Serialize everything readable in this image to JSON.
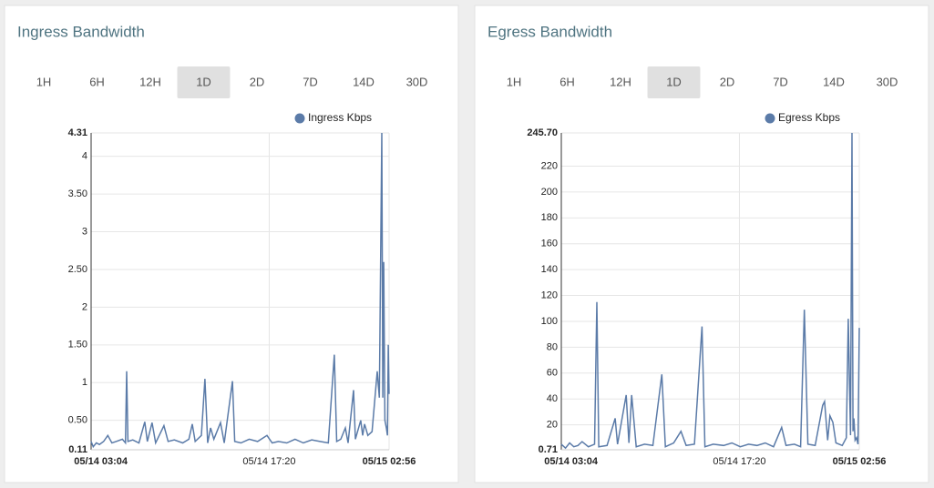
{
  "time_ranges": [
    "1H",
    "6H",
    "12H",
    "1D",
    "2D",
    "7D",
    "14D",
    "30D"
  ],
  "selected_range": "1D",
  "chart_data": [
    {
      "type": "line",
      "title": "Ingress Bandwidth",
      "legend": "top-right",
      "grid": true,
      "series": [
        {
          "name": "Ingress Kbps",
          "color": "#5b7ba8",
          "x": [
            0,
            10,
            25,
            40,
            60,
            80,
            100,
            120,
            150,
            165,
            171,
            177,
            200,
            230,
            258,
            270,
            293,
            310,
            350,
            370,
            400,
            440,
            470,
            486,
            500,
            530,
            547,
            560,
            574,
            590,
            622,
            640,
            679,
            690,
            720,
            760,
            800,
            845,
            870,
            900,
            940,
            980,
            1020,
            1060,
            1100,
            1140,
            1169,
            1180,
            1200,
            1222,
            1235,
            1261,
            1270,
            1296,
            1305,
            1314,
            1330,
            1350,
            1375,
            1385,
            1397,
            1402,
            1406,
            1412,
            1419,
            1424,
            1428,
            1432
          ],
          "values": [
            0.22,
            0.15,
            0.2,
            0.18,
            0.22,
            0.3,
            0.2,
            0.22,
            0.25,
            0.2,
            1.15,
            0.22,
            0.24,
            0.2,
            0.48,
            0.22,
            0.47,
            0.2,
            0.43,
            0.22,
            0.24,
            0.2,
            0.25,
            0.45,
            0.22,
            0.3,
            1.05,
            0.2,
            0.4,
            0.25,
            0.47,
            0.2,
            1.02,
            0.22,
            0.2,
            0.25,
            0.22,
            0.3,
            0.2,
            0.22,
            0.2,
            0.25,
            0.2,
            0.24,
            0.22,
            0.2,
            1.37,
            0.22,
            0.25,
            0.4,
            0.2,
            0.9,
            0.25,
            0.5,
            0.3,
            0.45,
            0.3,
            0.35,
            1.15,
            0.8,
            4.31,
            0.8,
            2.6,
            0.5,
            0.4,
            0.3,
            1.5,
            0.85
          ]
        }
      ],
      "xlim": [
        0,
        1432
      ],
      "xticks": [
        {
          "value": 0,
          "label": "05/14 03:04"
        },
        {
          "value": 856,
          "label": "05/14 17:20"
        },
        {
          "value": 1432,
          "label": "05/15 02:56"
        }
      ],
      "ylim": [
        0.11,
        4.31
      ],
      "yticks": [
        0.11,
        {
          "value": 0.5,
          "label": "0.50"
        },
        1,
        {
          "value": 1.5,
          "label": "1.50"
        },
        2,
        {
          "value": 2.5,
          "label": "2.50"
        },
        3,
        {
          "value": 3.5,
          "label": "3.50"
        },
        4,
        4.31
      ]
    },
    {
      "type": "line",
      "title": "Egress Bandwidth",
      "legend": "top-right",
      "grid": true,
      "series": [
        {
          "name": "Egress Kbps",
          "color": "#5b7ba8",
          "x": [
            0,
            20,
            40,
            60,
            80,
            100,
            130,
            160,
            171,
            180,
            220,
            259,
            270,
            312,
            325,
            338,
            360,
            400,
            440,
            483,
            500,
            540,
            575,
            600,
            640,
            676,
            690,
            730,
            780,
            820,
            860,
            900,
            940,
            980,
            1020,
            1059,
            1080,
            1120,
            1150,
            1168,
            1185,
            1220,
            1256,
            1265,
            1280,
            1291,
            1305,
            1320,
            1350,
            1370,
            1379,
            1390,
            1397,
            1402,
            1406,
            1412,
            1419,
            1426,
            1432
          ],
          "values": [
            5,
            2,
            6,
            3,
            4,
            7,
            3,
            5,
            115,
            3,
            4,
            25,
            5,
            43,
            6,
            43,
            3,
            5,
            4,
            59,
            3,
            6,
            15,
            4,
            5,
            96,
            3,
            5,
            4,
            6,
            3,
            5,
            4,
            6,
            3,
            18,
            4,
            5,
            3,
            109,
            5,
            4,
            35,
            38,
            8,
            27,
            22,
            6,
            4,
            10,
            102,
            12,
            245.7,
            15,
            25,
            8,
            10,
            5,
            95
          ]
        }
      ],
      "xlim": [
        0,
        1432
      ],
      "xticks": [
        {
          "value": 0,
          "label": "05/14 03:04"
        },
        {
          "value": 856,
          "label": "05/14 17:20"
        },
        {
          "value": 1432,
          "label": "05/15 02:56"
        }
      ],
      "ylim": [
        0.71,
        245.7
      ],
      "yticks": [
        0.71,
        20,
        40,
        60,
        80,
        100,
        120,
        140,
        160,
        180,
        200,
        220,
        {
          "value": 245.7,
          "label": "245.70"
        }
      ]
    }
  ]
}
